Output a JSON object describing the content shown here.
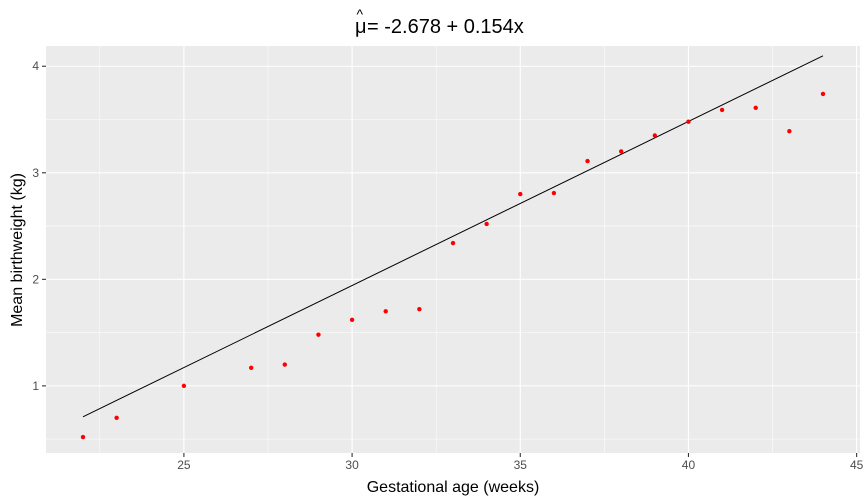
{
  "chart_data": {
    "type": "scatter",
    "title": {
      "hat_symbol": "^",
      "mu": "μ",
      "rest": " = -2.678 + 0.154x"
    },
    "xlabel": "Gestational age (weeks)",
    "ylabel": "Mean birthweight (kg)",
    "xlim": [
      20.9,
      45.1
    ],
    "ylim": [
      0.37,
      4.19
    ],
    "xticks": [
      25,
      30,
      35,
      40,
      45
    ],
    "xminor": [
      22.5,
      27.5,
      32.5,
      37.5,
      42.5
    ],
    "yticks": [
      1,
      2,
      3,
      4
    ],
    "yminor": [
      0.5,
      1.5,
      2.5,
      3.5
    ],
    "grid": true,
    "point_color": "#ff0000",
    "line_color": "#000000",
    "points": [
      {
        "x": 22,
        "y": 0.52
      },
      {
        "x": 23,
        "y": 0.7
      },
      {
        "x": 25,
        "y": 1.0
      },
      {
        "x": 27,
        "y": 1.17
      },
      {
        "x": 28,
        "y": 1.2
      },
      {
        "x": 29,
        "y": 1.48
      },
      {
        "x": 30,
        "y": 1.62
      },
      {
        "x": 31,
        "y": 1.7
      },
      {
        "x": 32,
        "y": 1.72
      },
      {
        "x": 33,
        "y": 2.34
      },
      {
        "x": 34,
        "y": 2.52
      },
      {
        "x": 35,
        "y": 2.8
      },
      {
        "x": 36,
        "y": 2.81
      },
      {
        "x": 37,
        "y": 3.11
      },
      {
        "x": 38,
        "y": 3.2
      },
      {
        "x": 39,
        "y": 3.35
      },
      {
        "x": 40,
        "y": 3.48
      },
      {
        "x": 41,
        "y": 3.59
      },
      {
        "x": 42,
        "y": 3.61
      },
      {
        "x": 43,
        "y": 3.39
      },
      {
        "x": 44,
        "y": 3.74
      }
    ],
    "fit": {
      "intercept": -2.678,
      "slope": 0.154,
      "x_range": [
        22,
        44
      ]
    }
  }
}
